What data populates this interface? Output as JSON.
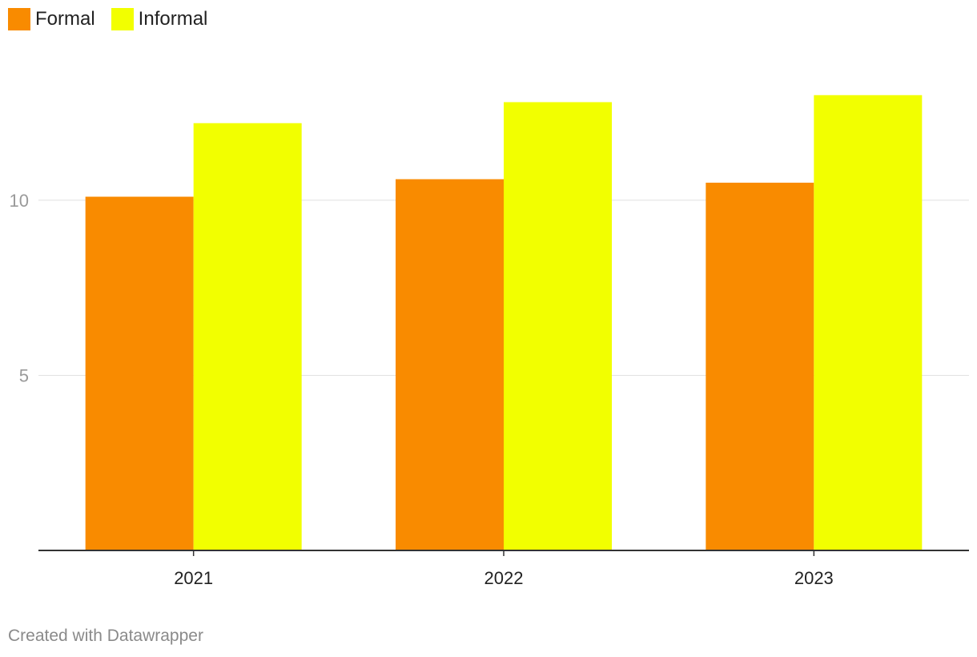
{
  "chart_data": {
    "type": "bar",
    "title": "",
    "xlabel": "",
    "ylabel": "",
    "categories": [
      "2021",
      "2022",
      "2023"
    ],
    "series": [
      {
        "name": "Formal",
        "color": "#f98b00",
        "values": [
          10.1,
          10.6,
          10.5
        ]
      },
      {
        "name": "Informal",
        "color": "#f2ff00",
        "values": [
          12.2,
          12.8,
          13.0
        ]
      }
    ],
    "ylim": [
      0,
      13.2
    ],
    "yticks": [
      5,
      10
    ],
    "grid": true,
    "legend_position": "top-left"
  },
  "footer": {
    "credit": "Created with Datawrapper"
  }
}
